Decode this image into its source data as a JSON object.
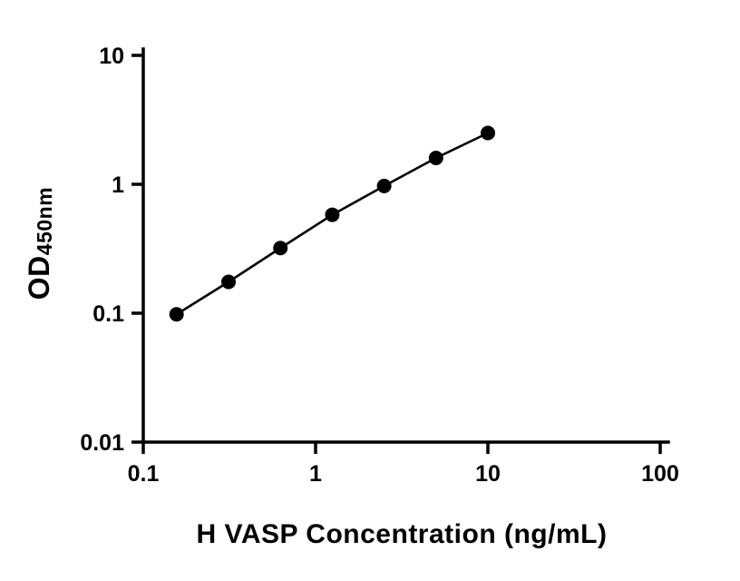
{
  "chart_data": {
    "type": "scatter",
    "x": [
      0.156,
      0.3125,
      0.625,
      1.25,
      2.5,
      5,
      10
    ],
    "y": [
      0.098,
      0.175,
      0.32,
      0.58,
      0.97,
      1.6,
      2.5
    ],
    "xlabel": "H VASP Concentration (ng/mL)",
    "ylabel_main": "OD",
    "ylabel_sub": "450nm",
    "xscale": "log",
    "yscale": "log",
    "xlim": [
      0.1,
      100
    ],
    "ylim": [
      0.01,
      10
    ],
    "x_ticks": [
      0.1,
      1,
      10,
      100
    ],
    "y_ticks": [
      0.01,
      0.1,
      1,
      10
    ],
    "grid": false,
    "legend": false,
    "line_color": "#000000",
    "marker_color": "#000000",
    "axis_color": "#000000",
    "background": "#ffffff"
  }
}
